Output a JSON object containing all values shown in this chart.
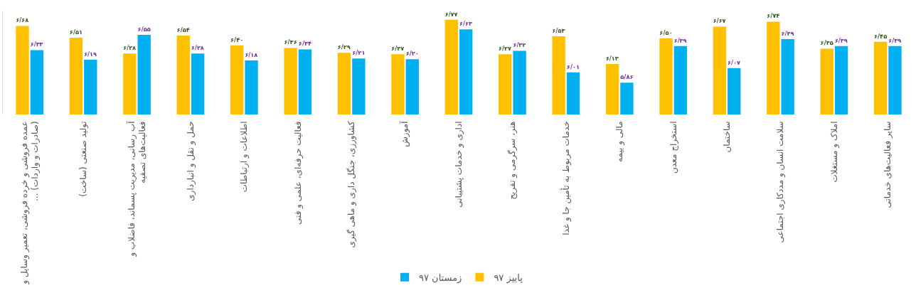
{
  "chart_data": {
    "type": "bar",
    "categories": [
      "عمده فروشی و خرده فروشی، تعمیر وسایل و ... (صادرات و واردات)",
      "تولید صنعتی (ساخت)",
      "آب رسانی، مدیریت پسماند، فاضلاب و فعالیت‌های تصفیه",
      "حمل و نقل و انبارداری",
      "اطلاعات و ارتباطات",
      "فعالیت حرفه‌ای، علمی و فنی",
      "کشاورزی، جنگل داری و ماهی گیری",
      "آموزش",
      "اداری و خدمات پشتیبانی",
      "هنر، سرگرمی و تفریح",
      "خدمات مربوط به تأمین جا و غذا",
      "مالی و بیمه",
      "استخراج معدن",
      "ساختمان",
      "سلامت انسان و مددکاری اجتماعی",
      "املاک و مستغلات",
      "سایر فعالیت‌های خدماتی"
    ],
    "series": [
      {
        "name": "پاییز ۹۷",
        "color": "#ffc000",
        "values": [
          6.68,
          6.51,
          6.28,
          6.54,
          6.4,
          6.36,
          6.29,
          6.27,
          6.77,
          6.27,
          6.53,
          6.13,
          6.5,
          6.67,
          6.74,
          6.35,
          6.45
        ],
        "value_labels": [
          "۶/۶۸",
          "۶/۵۱",
          "۶/۲۸",
          "۶/۵۴",
          "۶/۴۰",
          "۶/۳۶",
          "۶/۲۹",
          "۶/۲۷",
          "۶/۷۷",
          "۶/۲۷",
          "۶/۵۳",
          "۶/۱۳",
          "۶/۵۰",
          "۶/۶۷",
          "۶/۷۴",
          "۶/۳۵",
          "۶/۴۵"
        ]
      },
      {
        "name": "زمستان ۹۷",
        "color": "#00b0f0",
        "values": [
          6.33,
          6.19,
          6.55,
          6.28,
          6.18,
          6.34,
          6.21,
          6.2,
          6.63,
          6.32,
          6.01,
          5.86,
          6.39,
          6.07,
          6.49,
          6.39,
          6.39
        ],
        "value_labels": [
          "۶/۳۳",
          "۶/۱۹",
          "۶/۵۵",
          "۶/۲۸",
          "۶/۱۸",
          "۶/۳۴",
          "۶/۲۱",
          "۶/۲۰",
          "۶/۶۳",
          "۶/۳۲",
          "۶/۰۱",
          "۵/۸۶",
          "۶/۳۹",
          "۶/۰۷",
          "۶/۴۹",
          "۶/۳۹",
          "۶/۳۹"
        ]
      }
    ],
    "ylim": [
      5.4,
      6.9
    ],
    "tick_labels": "x",
    "legend": "bottom"
  }
}
